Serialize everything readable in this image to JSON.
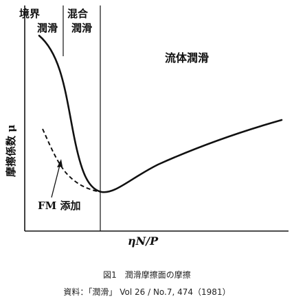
{
  "diagram": {
    "regions": {
      "boundary_line1": "境界",
      "boundary_line2": "潤滑",
      "mixed_line1": "混合",
      "mixed_line2": "潤滑",
      "fluid": "流体潤滑"
    },
    "y_axis_label": "摩擦係数 μ",
    "x_axis_label": "ηN/P",
    "fm_label": "FM 添加"
  },
  "caption": {
    "title": "図1　潤滑摩擦面の摩擦",
    "source": "資料：「潤滑」 Vol 26 / No.7,  474（1981）"
  }
}
